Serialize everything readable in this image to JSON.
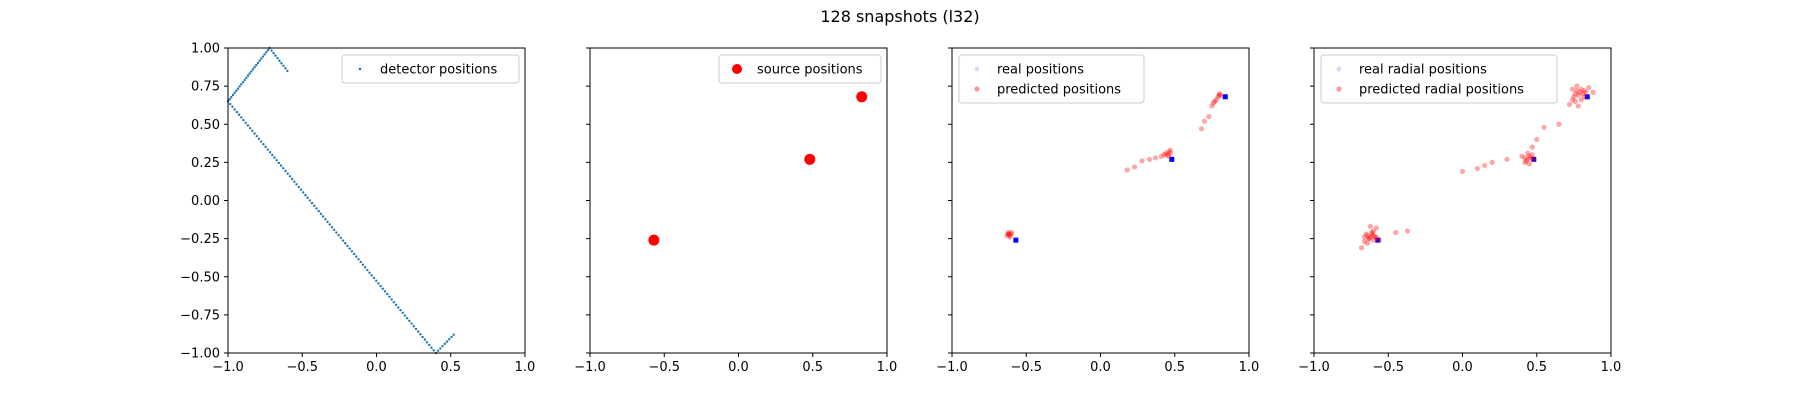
{
  "figure_title": "128 snapshots (l32)",
  "colors": {
    "blue": "#1f77b4",
    "red": "#ff0000",
    "real_marker": "#0000ff"
  },
  "chart_data": [
    {
      "type": "scatter",
      "xlim": [
        -1.0,
        1.0
      ],
      "ylim": [
        -1.0,
        1.0
      ],
      "xticks": [
        "−1.0",
        "−0.5",
        "0.0",
        "0.5",
        "1.0"
      ],
      "yticks": [
        "1.00",
        "0.75",
        "0.50",
        "0.25",
        "0.00",
        "−0.25",
        "−0.50",
        "−0.75",
        "−1.00"
      ],
      "legend_position": "top-right",
      "series": [
        {
          "name": "detector positions",
          "kind": "detector",
          "segments": [
            {
              "from": [
                -0.6,
                0.85
              ],
              "to": [
                -0.72,
                1.0
              ],
              "n": 10
            },
            {
              "from": [
                -0.72,
                1.0
              ],
              "to": [
                -1.0,
                0.65
              ],
              "n": 26
            },
            {
              "from": [
                -1.0,
                0.65
              ],
              "to": [
                0.4,
                -1.0
              ],
              "n": 95
            },
            {
              "from": [
                0.4,
                -1.0
              ],
              "to": [
                0.52,
                -0.88
              ],
              "n": 9
            }
          ]
        }
      ]
    },
    {
      "type": "scatter",
      "xlim": [
        -1.0,
        1.0
      ],
      "ylim": [
        -1.0,
        1.0
      ],
      "xticks": [
        "−1.0",
        "−0.5",
        "0.0",
        "0.5",
        "1.0"
      ],
      "legend_position": "top-right",
      "series": [
        {
          "name": "source positions",
          "kind": "source",
          "x": [
            -0.57,
            0.48,
            0.83
          ],
          "y": [
            -0.26,
            0.27,
            0.68
          ]
        }
      ]
    },
    {
      "type": "scatter",
      "xlim": [
        -1.0,
        1.0
      ],
      "ylim": [
        -1.0,
        1.0
      ],
      "xticks": [
        "−1.0",
        "−0.5",
        "0.0",
        "0.5",
        "1.0"
      ],
      "legend_position": "top-left",
      "series": [
        {
          "name": "real positions",
          "kind": "real",
          "x": [
            -0.57,
            0.48,
            0.84
          ],
          "y": [
            -0.26,
            0.27,
            0.68
          ]
        },
        {
          "name": "predicted positions",
          "kind": "predicted",
          "x": [
            -0.63,
            -0.62,
            -0.61,
            -0.6,
            -0.62,
            -0.61,
            -0.62,
            -0.6,
            0.18,
            0.23,
            0.28,
            0.33,
            0.37,
            0.41,
            0.43,
            0.44,
            0.45,
            0.46,
            0.46,
            0.47,
            0.47,
            0.68,
            0.7,
            0.73,
            0.75,
            0.76,
            0.77,
            0.78,
            0.79,
            0.8,
            0.8,
            0.81
          ],
          "y": [
            -0.23,
            -0.22,
            -0.23,
            -0.22,
            -0.21,
            -0.24,
            -0.22,
            -0.21,
            0.2,
            0.22,
            0.26,
            0.27,
            0.28,
            0.29,
            0.3,
            0.31,
            0.3,
            0.32,
            0.29,
            0.31,
            0.33,
            0.47,
            0.52,
            0.55,
            0.62,
            0.64,
            0.65,
            0.66,
            0.68,
            0.69,
            0.7,
            0.69
          ]
        }
      ]
    },
    {
      "type": "scatter",
      "xlim": [
        -1.0,
        1.0
      ],
      "ylim": [
        -1.0,
        1.0
      ],
      "xticks": [
        "−1.0",
        "−0.5",
        "0.0",
        "0.5",
        "1.0"
      ],
      "legend_position": "top-left",
      "series": [
        {
          "name": "real radial positions",
          "kind": "real",
          "x": [
            -0.57,
            0.48,
            0.84
          ],
          "y": [
            -0.26,
            0.27,
            0.68
          ]
        },
        {
          "name": "predicted radial positions",
          "kind": "predicted",
          "x": [
            -0.68,
            -0.66,
            -0.65,
            -0.64,
            -0.63,
            -0.62,
            -0.61,
            -0.6,
            -0.6,
            -0.59,
            -0.58,
            -0.62,
            -0.6,
            -0.56,
            -0.64,
            -0.61,
            -0.45,
            -0.37,
            -0.66,
            -0.63,
            -0.58,
            0.0,
            0.1,
            0.15,
            0.2,
            0.3,
            0.4,
            0.42,
            0.43,
            0.44,
            0.45,
            0.45,
            0.46,
            0.47,
            0.48,
            0.44,
            0.42,
            0.47,
            0.5,
            0.55,
            0.65,
            0.72,
            0.74,
            0.75,
            0.76,
            0.77,
            0.78,
            0.79,
            0.8,
            0.81,
            0.82,
            0.83,
            0.85,
            0.88,
            0.76,
            0.78,
            0.8,
            0.74,
            0.77,
            0.82
          ],
          "y": [
            -0.31,
            -0.24,
            -0.22,
            -0.23,
            -0.25,
            -0.24,
            -0.22,
            -0.23,
            -0.26,
            -0.24,
            -0.18,
            -0.17,
            -0.2,
            -0.26,
            -0.28,
            -0.21,
            -0.21,
            -0.2,
            -0.27,
            -0.25,
            -0.24,
            0.19,
            0.21,
            0.23,
            0.25,
            0.27,
            0.29,
            0.28,
            0.26,
            0.27,
            0.29,
            0.24,
            0.28,
            0.3,
            0.27,
            0.31,
            0.25,
            0.35,
            0.4,
            0.48,
            0.5,
            0.63,
            0.66,
            0.68,
            0.7,
            0.72,
            0.69,
            0.71,
            0.73,
            0.7,
            0.72,
            0.71,
            0.74,
            0.71,
            0.65,
            0.62,
            0.66,
            0.73,
            0.75,
            0.68
          ]
        }
      ]
    }
  ]
}
